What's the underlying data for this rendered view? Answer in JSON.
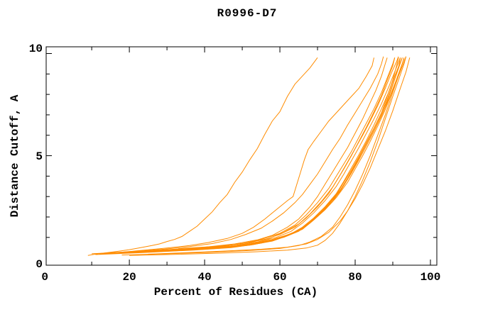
{
  "chart_data": {
    "type": "line",
    "title": "R0996-D7",
    "xlabel": "Percent of Residues (CA)",
    "ylabel": "Distance Cutoff, A",
    "xlim": [
      -2.1,
      101.7
    ],
    "ylim": [
      -0.36,
      10.33
    ],
    "grid": false,
    "legend": null,
    "line_color": "#ff8c00",
    "frame_color": "#000000",
    "background_color": "#ffffff",
    "x_axis": {
      "tick_marks_major": [
        20,
        40,
        60,
        80,
        100
      ],
      "tick_marks_minor": [
        10,
        30,
        50,
        70,
        90
      ],
      "tick_labels": [
        {
          "value": 0,
          "text": "0"
        },
        {
          "value": 20,
          "text": "20"
        },
        {
          "value": 40,
          "text": "40"
        },
        {
          "value": 60,
          "text": "60"
        },
        {
          "value": 80,
          "text": "80"
        },
        {
          "value": 100,
          "text": "100"
        }
      ]
    },
    "y_axis": {
      "tick_marks_major": [
        5,
        10
      ],
      "tick_marks_minor": [
        1,
        2,
        3,
        4,
        6,
        7,
        8,
        9
      ],
      "tick_labels": [
        {
          "value": 0,
          "text": "0"
        },
        {
          "value": 5,
          "text": "5"
        },
        {
          "value": 10,
          "text": "10"
        }
      ]
    },
    "series": [
      [
        [
          9,
          0.12
        ],
        [
          11,
          0.18
        ],
        [
          14,
          0.25
        ],
        [
          17,
          0.32
        ],
        [
          20,
          0.4
        ],
        [
          23,
          0.5
        ],
        [
          26,
          0.6
        ],
        [
          28,
          0.68
        ],
        [
          30,
          0.8
        ],
        [
          32,
          0.9
        ],
        [
          34,
          1.05
        ],
        [
          36,
          1.3
        ],
        [
          38,
          1.55
        ],
        [
          40,
          1.9
        ],
        [
          42,
          2.25
        ],
        [
          44,
          2.7
        ],
        [
          46,
          3.1
        ],
        [
          48,
          3.7
        ],
        [
          50,
          4.2
        ],
        [
          52,
          4.8
        ],
        [
          54,
          5.35
        ],
        [
          56,
          6.05
        ],
        [
          58,
          6.7
        ],
        [
          60,
          7.15
        ],
        [
          62,
          7.9
        ],
        [
          64,
          8.5
        ],
        [
          66,
          8.9
        ],
        [
          68,
          9.3
        ],
        [
          70,
          9.8
        ]
      ],
      [
        [
          12,
          0.18
        ],
        [
          18,
          0.28
        ],
        [
          24,
          0.38
        ],
        [
          30,
          0.48
        ],
        [
          36,
          0.6
        ],
        [
          41,
          0.75
        ],
        [
          46,
          0.95
        ],
        [
          50,
          1.2
        ],
        [
          53,
          1.5
        ],
        [
          56,
          1.9
        ],
        [
          58,
          2.2
        ],
        [
          60,
          2.5
        ],
        [
          62,
          2.8
        ],
        [
          63.5,
          3.0
        ],
        [
          64.5,
          3.6
        ],
        [
          65.5,
          4.2
        ],
        [
          66.5,
          4.8
        ],
        [
          67.5,
          5.3
        ],
        [
          69,
          5.7
        ],
        [
          71,
          6.2
        ],
        [
          73,
          6.7
        ],
        [
          75,
          7.1
        ],
        [
          77,
          7.5
        ],
        [
          79,
          7.9
        ],
        [
          81,
          8.3
        ],
        [
          83,
          8.9
        ],
        [
          84.5,
          9.4
        ],
        [
          85,
          9.8
        ]
      ],
      [
        [
          15,
          0.22
        ],
        [
          22,
          0.32
        ],
        [
          29,
          0.42
        ],
        [
          36,
          0.55
        ],
        [
          42,
          0.7
        ],
        [
          47,
          0.9
        ],
        [
          51,
          1.15
        ],
        [
          55,
          1.45
        ],
        [
          58,
          1.8
        ],
        [
          61,
          2.2
        ],
        [
          64,
          2.7
        ],
        [
          66,
          3.1
        ],
        [
          68,
          3.6
        ],
        [
          70,
          4.1
        ],
        [
          72,
          4.7
        ],
        [
          74,
          5.3
        ],
        [
          76,
          5.85
        ],
        [
          78,
          6.5
        ],
        [
          80,
          7.1
        ],
        [
          82,
          7.7
        ],
        [
          84,
          8.3
        ],
        [
          86,
          9.0
        ],
        [
          87,
          9.5
        ],
        [
          87.5,
          9.85
        ]
      ],
      [
        [
          10,
          0.2
        ],
        [
          20,
          0.3
        ],
        [
          30,
          0.4
        ],
        [
          40,
          0.52
        ],
        [
          48,
          0.68
        ],
        [
          54,
          0.88
        ],
        [
          58,
          1.1
        ],
        [
          62,
          1.5
        ],
        [
          65,
          1.9
        ],
        [
          68,
          2.5
        ],
        [
          70,
          3.0
        ],
        [
          72,
          3.6
        ],
        [
          74,
          4.2
        ],
        [
          76,
          4.8
        ],
        [
          78,
          5.4
        ],
        [
          80,
          6.1
        ],
        [
          82,
          6.8
        ],
        [
          84,
          7.6
        ],
        [
          85.5,
          8.2
        ],
        [
          87,
          8.9
        ],
        [
          88,
          9.5
        ],
        [
          88.5,
          9.8
        ]
      ],
      [
        [
          13,
          0.22
        ],
        [
          23,
          0.32
        ],
        [
          33,
          0.42
        ],
        [
          43,
          0.55
        ],
        [
          50,
          0.7
        ],
        [
          55,
          0.9
        ],
        [
          60,
          1.2
        ],
        [
          64,
          1.6
        ],
        [
          67,
          2.1
        ],
        [
          70,
          2.7
        ],
        [
          73,
          3.4
        ],
        [
          75,
          4.0
        ],
        [
          77,
          4.6
        ],
        [
          79,
          5.2
        ],
        [
          81,
          5.9
        ],
        [
          83,
          6.6
        ],
        [
          85,
          7.3
        ],
        [
          87,
          8.1
        ],
        [
          88.5,
          8.8
        ],
        [
          90,
          9.5
        ],
        [
          90.5,
          9.8
        ]
      ],
      [
        [
          16,
          0.24
        ],
        [
          26,
          0.33
        ],
        [
          36,
          0.44
        ],
        [
          45,
          0.58
        ],
        [
          52,
          0.75
        ],
        [
          57,
          0.95
        ],
        [
          61,
          1.25
        ],
        [
          65,
          1.65
        ],
        [
          68,
          2.15
        ],
        [
          71,
          2.75
        ],
        [
          74,
          3.45
        ],
        [
          76,
          4.05
        ],
        [
          78,
          4.7
        ],
        [
          80,
          5.35
        ],
        [
          82,
          6.0
        ],
        [
          84,
          6.7
        ],
        [
          86,
          7.45
        ],
        [
          88,
          8.3
        ],
        [
          89.5,
          9.0
        ],
        [
          91,
          9.6
        ],
        [
          91.5,
          9.85
        ]
      ],
      [
        [
          19,
          0.26
        ],
        [
          29,
          0.35
        ],
        [
          39,
          0.46
        ],
        [
          48,
          0.6
        ],
        [
          54,
          0.78
        ],
        [
          59,
          1.0
        ],
        [
          63,
          1.3
        ],
        [
          66,
          1.7
        ],
        [
          69,
          2.2
        ],
        [
          72,
          2.8
        ],
        [
          75,
          3.5
        ],
        [
          77,
          4.1
        ],
        [
          79,
          4.75
        ],
        [
          81,
          5.4
        ],
        [
          83,
          6.1
        ],
        [
          85,
          6.8
        ],
        [
          87,
          7.55
        ],
        [
          89,
          8.4
        ],
        [
          90.5,
          9.1
        ],
        [
          92,
          9.8
        ]
      ],
      [
        [
          22,
          0.28
        ],
        [
          32,
          0.37
        ],
        [
          42,
          0.48
        ],
        [
          50,
          0.62
        ],
        [
          56,
          0.8
        ],
        [
          61,
          1.05
        ],
        [
          65,
          1.35
        ],
        [
          68,
          1.75
        ],
        [
          71,
          2.25
        ],
        [
          74,
          2.85
        ],
        [
          77,
          3.55
        ],
        [
          79,
          4.15
        ],
        [
          81,
          4.8
        ],
        [
          83,
          5.5
        ],
        [
          85,
          6.2
        ],
        [
          87,
          6.95
        ],
        [
          89,
          7.8
        ],
        [
          90.5,
          8.5
        ],
        [
          92,
          9.2
        ],
        [
          93,
          9.8
        ]
      ],
      [
        [
          25,
          0.18
        ],
        [
          35,
          0.25
        ],
        [
          45,
          0.33
        ],
        [
          55,
          0.42
        ],
        [
          62,
          0.52
        ],
        [
          67,
          0.68
        ],
        [
          70,
          0.9
        ],
        [
          73,
          1.25
        ],
        [
          76,
          1.8
        ],
        [
          78,
          2.3
        ],
        [
          80,
          2.9
        ],
        [
          82,
          3.6
        ],
        [
          84,
          4.4
        ],
        [
          86,
          5.3
        ],
        [
          88,
          6.2
        ],
        [
          90,
          7.2
        ],
        [
          92,
          8.3
        ],
        [
          93.5,
          9.1
        ],
        [
          94.5,
          9.8
        ]
      ],
      [
        [
          20,
          0.12
        ],
        [
          32,
          0.17
        ],
        [
          44,
          0.23
        ],
        [
          54,
          0.3
        ],
        [
          62,
          0.38
        ],
        [
          67,
          0.48
        ],
        [
          70,
          0.62
        ],
        [
          72,
          0.85
        ],
        [
          74,
          1.2
        ],
        [
          76,
          1.7
        ],
        [
          78,
          2.3
        ],
        [
          80,
          3.0
        ],
        [
          82,
          3.8
        ],
        [
          84,
          4.7
        ],
        [
          86,
          5.7
        ],
        [
          88,
          6.8
        ],
        [
          90,
          7.9
        ],
        [
          91.5,
          8.7
        ],
        [
          93,
          9.5
        ],
        [
          93.5,
          9.85
        ]
      ],
      [
        [
          11,
          0.16
        ],
        [
          24,
          0.26
        ],
        [
          37,
          0.38
        ],
        [
          47,
          0.5
        ],
        [
          53,
          0.65
        ],
        [
          58,
          0.85
        ],
        [
          62,
          1.1
        ],
        [
          66,
          1.45
        ],
        [
          69,
          1.9
        ],
        [
          72,
          2.45
        ],
        [
          75,
          3.1
        ],
        [
          77,
          3.7
        ],
        [
          79,
          4.3
        ],
        [
          81,
          4.95
        ],
        [
          83,
          5.65
        ],
        [
          85,
          6.35
        ],
        [
          87,
          7.1
        ],
        [
          88.5,
          7.9
        ],
        [
          90,
          8.7
        ],
        [
          91,
          9.4
        ],
        [
          91.5,
          9.8
        ]
      ],
      [
        [
          14,
          0.2
        ],
        [
          27,
          0.3
        ],
        [
          40,
          0.42
        ],
        [
          49,
          0.56
        ],
        [
          55,
          0.72
        ],
        [
          60,
          0.95
        ],
        [
          64,
          1.25
        ],
        [
          67,
          1.6
        ],
        [
          70,
          2.05
        ],
        [
          73,
          2.6
        ],
        [
          76,
          3.25
        ],
        [
          78,
          3.85
        ],
        [
          80,
          4.5
        ],
        [
          82,
          5.15
        ],
        [
          84,
          5.85
        ],
        [
          86,
          6.6
        ],
        [
          88,
          7.4
        ],
        [
          89.5,
          8.2
        ],
        [
          91,
          9.0
        ],
        [
          92.5,
          9.8
        ]
      ],
      [
        [
          17,
          0.22
        ],
        [
          30,
          0.33
        ],
        [
          41,
          0.45
        ],
        [
          50,
          0.6
        ],
        [
          56,
          0.78
        ],
        [
          61,
          1.0
        ],
        [
          65,
          1.3
        ],
        [
          68,
          1.7
        ],
        [
          71,
          2.2
        ],
        [
          74,
          2.75
        ],
        [
          76,
          3.3
        ],
        [
          78,
          3.9
        ],
        [
          80,
          4.55
        ],
        [
          82,
          5.25
        ],
        [
          84,
          5.95
        ],
        [
          86,
          6.7
        ],
        [
          88,
          7.5
        ],
        [
          90,
          8.5
        ],
        [
          91.5,
          9.3
        ],
        [
          92,
          9.8
        ]
      ],
      [
        [
          21,
          0.25
        ],
        [
          33,
          0.35
        ],
        [
          44,
          0.47
        ],
        [
          52,
          0.62
        ],
        [
          58,
          0.82
        ],
        [
          62,
          1.08
        ],
        [
          66,
          1.4
        ],
        [
          69,
          1.85
        ],
        [
          72,
          2.35
        ],
        [
          75,
          2.95
        ],
        [
          78,
          3.7
        ],
        [
          80,
          4.35
        ],
        [
          82,
          5.0
        ],
        [
          84,
          5.7
        ],
        [
          86,
          6.45
        ],
        [
          88,
          7.25
        ],
        [
          90,
          8.2
        ],
        [
          91.5,
          9.0
        ],
        [
          93,
          9.75
        ]
      ],
      [
        [
          24,
          0.3
        ],
        [
          34,
          0.4
        ],
        [
          44,
          0.52
        ],
        [
          52,
          0.68
        ],
        [
          58,
          0.9
        ],
        [
          63,
          1.18
        ],
        [
          66,
          1.5
        ],
        [
          69,
          1.95
        ],
        [
          72,
          2.5
        ],
        [
          75,
          3.15
        ],
        [
          77,
          3.75
        ],
        [
          79,
          4.4
        ],
        [
          81,
          5.05
        ],
        [
          83,
          5.75
        ],
        [
          85,
          6.5
        ],
        [
          87,
          7.3
        ],
        [
          89,
          8.15
        ],
        [
          90.5,
          8.9
        ],
        [
          92.5,
          9.8
        ]
      ],
      [
        [
          18,
          0.14
        ],
        [
          30,
          0.2
        ],
        [
          42,
          0.27
        ],
        [
          52,
          0.36
        ],
        [
          60,
          0.46
        ],
        [
          65,
          0.6
        ],
        [
          68,
          0.78
        ],
        [
          71,
          1.05
        ],
        [
          74,
          1.5
        ],
        [
          76,
          2.0
        ],
        [
          78,
          2.6
        ],
        [
          80,
          3.3
        ],
        [
          82,
          4.1
        ],
        [
          84,
          5.0
        ],
        [
          86,
          6.0
        ],
        [
          88,
          7.0
        ],
        [
          90,
          8.1
        ],
        [
          91.5,
          8.9
        ],
        [
          93,
          9.6
        ],
        [
          93.5,
          9.85
        ]
      ],
      [
        [
          33,
          0.45
        ],
        [
          42,
          0.55
        ],
        [
          50,
          0.7
        ],
        [
          56,
          0.9
        ],
        [
          60,
          1.15
        ],
        [
          64,
          1.5
        ],
        [
          67,
          1.95
        ],
        [
          70,
          2.5
        ],
        [
          73,
          3.15
        ],
        [
          75,
          3.75
        ],
        [
          77,
          4.35
        ],
        [
          79,
          5.0
        ],
        [
          81,
          5.7
        ],
        [
          83,
          6.4
        ],
        [
          85,
          7.15
        ],
        [
          87,
          7.95
        ],
        [
          88.5,
          8.7
        ],
        [
          90,
          9.4
        ],
        [
          90.5,
          9.8
        ]
      ]
    ]
  }
}
